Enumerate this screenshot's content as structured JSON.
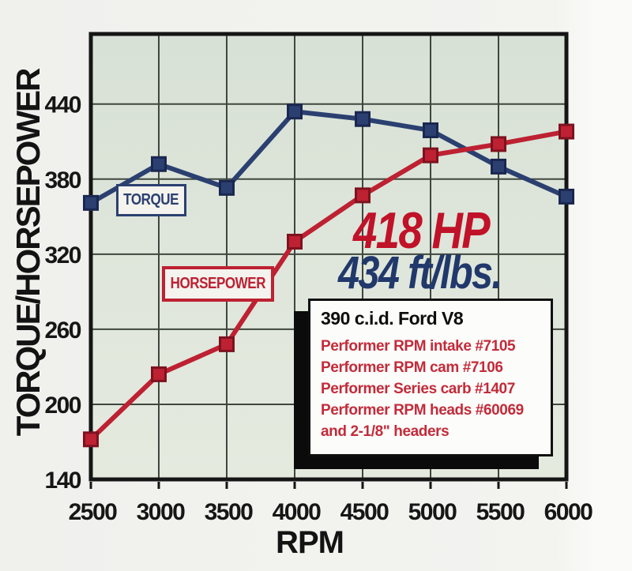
{
  "y_axis_title": "TORQUE/HORSEPOWER",
  "x_axis_title": "RPM",
  "annotations": {
    "hp_peak": "418 HP",
    "torque_peak": "434 ft/lbs."
  },
  "info_box": {
    "title": "390 c.i.d. Ford V8",
    "lines": [
      "Performer RPM intake #7105",
      "Performer RPM cam #7106",
      "Performer Series carb #1407",
      "Performer RPM heads #60069",
      "and 2-1/8\" headers"
    ]
  },
  "colors": {
    "torque": "#2b4070",
    "torque_edge": "#1a2750",
    "horsepower": "#bd2132",
    "horsepower_edge": "#7e1220",
    "annotation_hp": "#c01228",
    "annotation_torque": "#21386b",
    "info_red": "#c32b3a",
    "grid": "#3e473f",
    "frame": "#151515",
    "plot_bg_top": "#d8e1d6",
    "plot_bg_bottom": "#e5eadf"
  },
  "chart_data": {
    "type": "line",
    "title": "",
    "xlabel": "RPM",
    "ylabel": "TORQUE/HORSEPOWER",
    "x": [
      2500,
      3000,
      3500,
      4000,
      4500,
      5000,
      5500,
      6000
    ],
    "series": [
      {
        "name": "TORQUE",
        "color": "#2b4070",
        "edge": "#1a2750",
        "values": [
          361,
          392,
          373,
          434,
          428,
          419,
          390,
          366
        ]
      },
      {
        "name": "HORSEPOWER",
        "color": "#bd2132",
        "edge": "#7e1220",
        "values": [
          172,
          224,
          248,
          330,
          367,
          399,
          408,
          418
        ]
      }
    ],
    "x_ticks": [
      2500,
      3000,
      3500,
      4000,
      4500,
      5000,
      5500,
      6000
    ],
    "y_ticks": [
      140,
      200,
      260,
      320,
      380,
      440
    ],
    "xlim": [
      2500,
      6000
    ],
    "ylim": [
      140,
      496
    ],
    "grid": true,
    "legend_position": "inside-plot",
    "marker": "square"
  }
}
